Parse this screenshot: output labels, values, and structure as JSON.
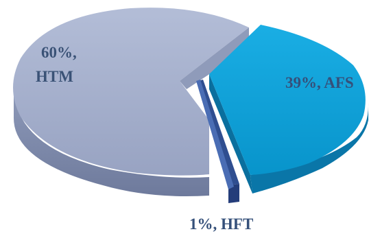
{
  "chart_data": {
    "type": "pie",
    "style": "3d-exploded",
    "title": "",
    "slices": [
      {
        "name": "HTM",
        "value": 60,
        "label_line1": "60%,",
        "label_line2": "HTM",
        "color": "#A3AECB",
        "side_color": "#7F8BAD",
        "label_color": "#3A5276"
      },
      {
        "name": "AFS",
        "value": 39,
        "label": "39%, AFS",
        "color": "#0FA1D9",
        "side_color": "#0A76A8",
        "label_color": "#35507A"
      },
      {
        "name": "HFT",
        "value": 1,
        "label": "1%, HFT",
        "color": "#3E61A6",
        "side_color": "#243D7A",
        "label_color": "#35507A"
      }
    ]
  }
}
